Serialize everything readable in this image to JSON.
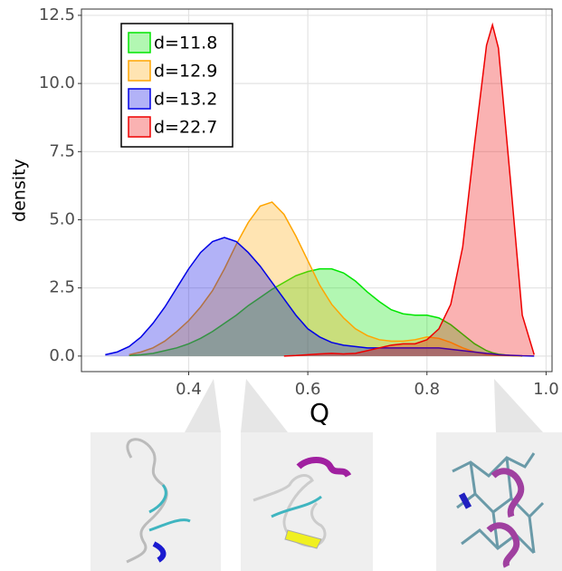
{
  "chart_data": {
    "type": "area",
    "x_label": "Q",
    "y_label": "density",
    "x": [
      0.26,
      0.28,
      0.3,
      0.32,
      0.34,
      0.36,
      0.38,
      0.4,
      0.42,
      0.44,
      0.46,
      0.48,
      0.5,
      0.52,
      0.54,
      0.56,
      0.58,
      0.6,
      0.62,
      0.64,
      0.66,
      0.68,
      0.7,
      0.72,
      0.74,
      0.76,
      0.78,
      0.8,
      0.82,
      0.84,
      0.86,
      0.88,
      0.9,
      0.91,
      0.92,
      0.94,
      0.96,
      0.98
    ],
    "series": [
      {
        "name": "d=11.8",
        "color": "#00e600",
        "values": [
          null,
          null,
          0.02,
          0.05,
          0.1,
          0.2,
          0.3,
          0.45,
          0.65,
          0.9,
          1.2,
          1.5,
          1.85,
          2.15,
          2.45,
          2.7,
          2.95,
          3.1,
          3.2,
          3.2,
          3.05,
          2.75,
          2.35,
          2.0,
          1.7,
          1.55,
          1.5,
          1.5,
          1.4,
          1.15,
          0.8,
          0.45,
          0.2,
          0.12,
          0.07,
          0.02,
          0,
          null
        ]
      },
      {
        "name": "d=12.9",
        "color": "#ffa500",
        "values": [
          null,
          null,
          0.05,
          0.15,
          0.3,
          0.55,
          0.9,
          1.3,
          1.8,
          2.4,
          3.2,
          4.1,
          4.9,
          5.5,
          5.65,
          5.2,
          4.4,
          3.5,
          2.6,
          1.9,
          1.4,
          1.0,
          0.75,
          0.6,
          0.55,
          0.55,
          0.6,
          0.7,
          0.65,
          0.5,
          0.3,
          0.15,
          0.05,
          0.03,
          0.02,
          0.01,
          0,
          null
        ]
      },
      {
        "name": "d=13.2",
        "color": "#0000e6",
        "values": [
          0.05,
          0.15,
          0.35,
          0.7,
          1.2,
          1.8,
          2.5,
          3.2,
          3.8,
          4.2,
          4.35,
          4.2,
          3.8,
          3.3,
          2.7,
          2.1,
          1.5,
          1.0,
          0.7,
          0.5,
          0.4,
          0.35,
          0.3,
          0.3,
          0.3,
          0.3,
          0.3,
          0.3,
          0.3,
          0.25,
          0.2,
          0.15,
          0.1,
          0.08,
          0.05,
          0.03,
          0.01,
          0
        ]
      },
      {
        "name": "d=22.7",
        "color": "#ee0000",
        "values": [
          null,
          null,
          null,
          null,
          null,
          null,
          null,
          null,
          null,
          null,
          null,
          null,
          null,
          null,
          null,
          0,
          0.02,
          0.05,
          0.08,
          0.1,
          0.08,
          0.1,
          0.2,
          0.3,
          0.4,
          0.45,
          0.45,
          0.6,
          1.0,
          1.9,
          4.0,
          7.8,
          11.4,
          12.15,
          11.3,
          6.5,
          1.5,
          0.05
        ]
      }
    ],
    "xlim": [
      0.22,
      1.01
    ],
    "ylim": [
      -0.57,
      12.73
    ],
    "xticks": [
      0.4,
      0.6,
      0.8,
      {
        "value": 1,
        "label": "1.0"
      }
    ],
    "yticks": [
      {
        "value": 0,
        "label": "0.0"
      },
      2.5,
      {
        "value": 5,
        "label": "5.0"
      },
      7.5,
      {
        "value": 10,
        "label": "10.0"
      },
      12.5
    ],
    "grid": true,
    "legend_position": "top-left",
    "fill_opacity": 0.3
  }
}
